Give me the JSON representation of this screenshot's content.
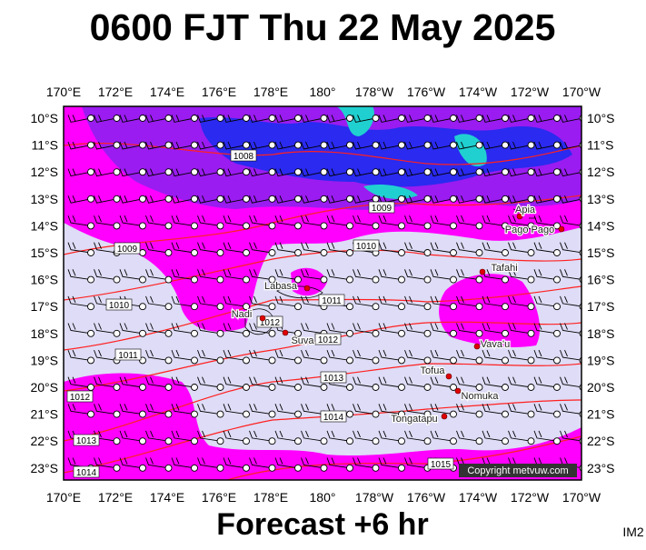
{
  "header": {
    "title": "0600 FJT Thu 22 May 2025"
  },
  "map": {
    "lon_labels": [
      "170°E",
      "172°E",
      "174°E",
      "176°E",
      "178°E",
      "180°",
      "178°W",
      "176°W",
      "174°W",
      "172°W",
      "170°W"
    ],
    "lat_labels": [
      "10°S",
      "11°S",
      "12°S",
      "13°S",
      "14°S",
      "15°S",
      "16°S",
      "17°S",
      "18°S",
      "19°S",
      "20°S",
      "21°S",
      "22°S",
      "23°S"
    ],
    "isobar_labels": [
      "1008",
      "1009",
      "1009",
      "1010",
      "1010",
      "1011",
      "1011",
      "1012",
      "1012",
      "1012",
      "1013",
      "1013",
      "1014",
      "1014",
      "1015"
    ],
    "places": [
      "Apia",
      "Pago Pago",
      "Tafahi",
      "Labasa",
      "Nadi",
      "Suva",
      "Vava'u",
      "Tofua",
      "Nomuka",
      "Tongatapu"
    ],
    "copyright": "Copyright metvuw.com"
  },
  "footer": {
    "caption": "Forecast +6 hr",
    "code": "IM2"
  }
}
